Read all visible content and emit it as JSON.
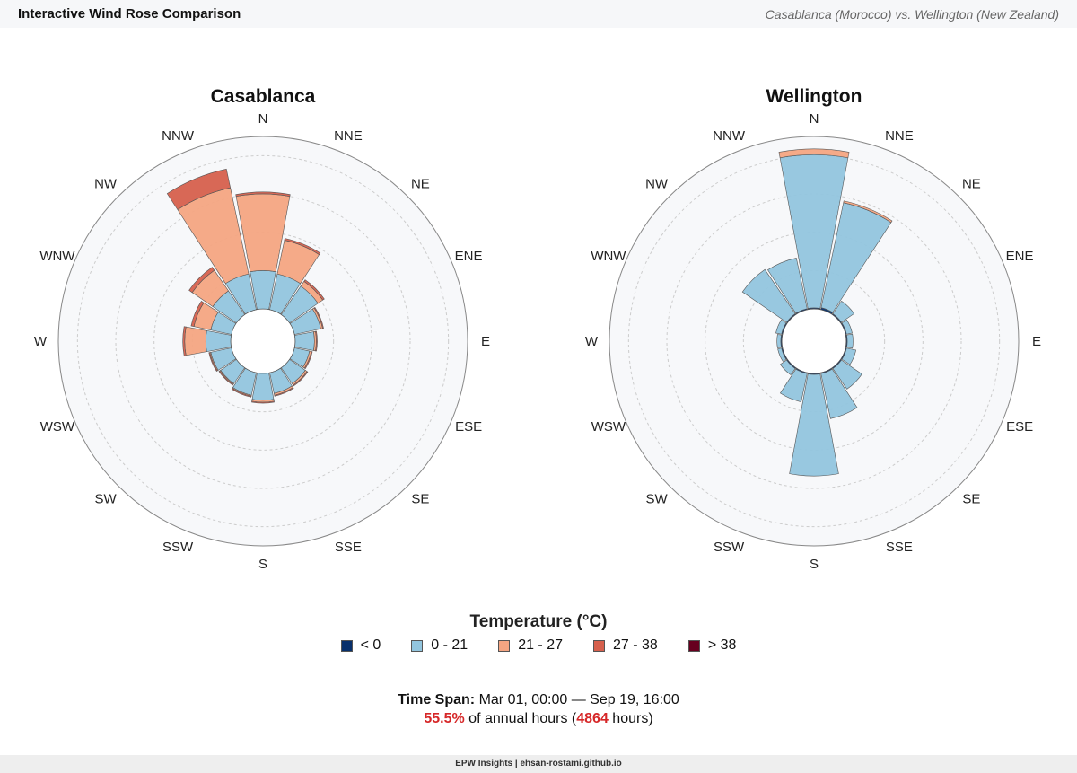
{
  "header": {
    "title": "Interactive Wind Rose Comparison",
    "subtitle": "Casablanca (Morocco) vs. Wellington (New Zealand)"
  },
  "directions": [
    "N",
    "NNE",
    "NE",
    "ENE",
    "E",
    "ESE",
    "SE",
    "SSE",
    "S",
    "SSW",
    "SW",
    "WSW",
    "W",
    "WNW",
    "NW",
    "NNW"
  ],
  "colors": {
    "<0": "#08306b",
    "0-21": "#92c5de",
    "21-27": "#f4a582",
    "27-38": "#d6604d",
    ">38": "#67001f",
    "plot_bg": "#f7f8fa",
    "ring": "#cccccc"
  },
  "legend": {
    "title": "Temperature (°C)",
    "items": [
      {
        "label": "< 0",
        "color": "#08306b"
      },
      {
        "label": "0 - 21",
        "color": "#92c5de"
      },
      {
        "label": "21 - 27",
        "color": "#f4a582"
      },
      {
        "label": "27 - 38",
        "color": "#d6604d"
      },
      {
        "label": "> 38",
        "color": "#67001f"
      }
    ]
  },
  "chart_data": [
    {
      "type": "barpolar",
      "title": "Casablanca",
      "categories": [
        "N",
        "NNE",
        "NE",
        "ENE",
        "E",
        "ESE",
        "SE",
        "SSE",
        "S",
        "SSW",
        "SW",
        "WSW",
        "W",
        "WNW",
        "NW",
        "NNW"
      ],
      "radial_range": [
        0,
        9
      ],
      "series": [
        {
          "name": "< 0",
          "values": [
            0,
            0,
            0,
            0,
            0,
            0,
            0,
            0,
            0,
            0,
            0,
            0,
            0,
            0,
            0,
            0
          ]
        },
        {
          "name": "0 - 21",
          "values": [
            2.0,
            1.9,
            1.8,
            1.4,
            1.0,
            0.8,
            1.0,
            1.1,
            1.4,
            1.2,
            1.0,
            1.1,
            1.3,
            1.1,
            1.5,
            1.9
          ]
        },
        {
          "name": "21 - 27",
          "values": [
            4.0,
            1.8,
            0.3,
            0.1,
            0.1,
            0.1,
            0.1,
            0.1,
            0.1,
            0.05,
            0.05,
            0.05,
            1.1,
            0.9,
            1.3,
            4.6
          ]
        },
        {
          "name": "27 - 38",
          "values": [
            0.1,
            0.1,
            0.1,
            0.05,
            0.05,
            0.05,
            0.05,
            0.05,
            0.05,
            0.05,
            0.05,
            0.05,
            0.1,
            0.15,
            0.2,
            1.0
          ]
        },
        {
          "name": "> 38",
          "values": [
            0,
            0,
            0,
            0,
            0,
            0,
            0,
            0,
            0,
            0,
            0,
            0,
            0,
            0,
            0,
            0
          ]
        }
      ]
    },
    {
      "type": "barpolar",
      "title": "Wellington",
      "categories": [
        "N",
        "NNE",
        "NE",
        "ENE",
        "E",
        "ESE",
        "SE",
        "SSE",
        "S",
        "SSW",
        "SW",
        "WSW",
        "W",
        "WNW",
        "NW",
        "NNW"
      ],
      "radial_range": [
        0,
        9
      ],
      "series": [
        {
          "name": "< 0",
          "values": [
            0.05,
            0.1,
            0.05,
            0.05,
            0.05,
            0.05,
            0.05,
            0.05,
            0.05,
            0.05,
            0.05,
            0.05,
            0.05,
            0.05,
            0.05,
            0.05
          ]
        },
        {
          "name": "0 - 21",
          "values": [
            8.0,
            5.6,
            0.8,
            0.3,
            0.3,
            0.5,
            1.3,
            2.4,
            5.3,
            1.5,
            0.4,
            0.2,
            0.2,
            0.3,
            2.8,
            2.7
          ]
        },
        {
          "name": "21 - 27",
          "values": [
            0.3,
            0.1,
            0,
            0,
            0,
            0,
            0,
            0,
            0,
            0,
            0,
            0,
            0,
            0,
            0,
            0
          ]
        },
        {
          "name": "27 - 38",
          "values": [
            0,
            0,
            0,
            0,
            0,
            0,
            0,
            0,
            0,
            0,
            0,
            0,
            0,
            0,
            0,
            0
          ]
        },
        {
          "name": "> 38",
          "values": [
            0,
            0,
            0,
            0,
            0,
            0,
            0,
            0,
            0,
            0,
            0,
            0,
            0,
            0,
            0,
            0
          ]
        }
      ]
    }
  ],
  "timespan": {
    "label": "Time Span:",
    "range": "Mar 01, 00:00 — Sep 19, 16:00",
    "percent": "55.5%",
    "mid": " of annual hours (",
    "hours": "4864",
    "end": " hours)"
  },
  "footer": {
    "text": "EPW Insights | ehsan-rostami.github.io"
  }
}
